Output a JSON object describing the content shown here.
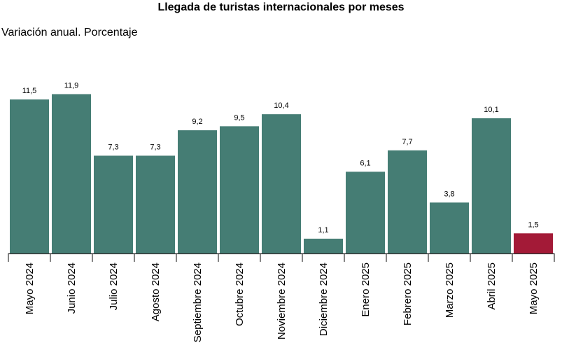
{
  "chart_data": {
    "type": "bar",
    "title": "Llegada de turistas internacionales por meses",
    "subtitle": "Variación anual. Porcentaje",
    "categories": [
      "Mayo 2024",
      "Junio 2024",
      "Julio 2024",
      "Agosto 2024",
      "Septiembre 2024",
      "Octubre 2024",
      "Noviembre 2024",
      "Diciembre 2024",
      "Enero 2025",
      "Febrero 2025",
      "Marzo 2025",
      "Abril 2025",
      "Mayo 2025"
    ],
    "values": [
      11.5,
      11.9,
      7.3,
      7.3,
      9.2,
      9.5,
      10.4,
      1.1,
      6.1,
      7.7,
      3.8,
      10.1,
      1.5
    ],
    "value_labels": [
      "11,5",
      "11,9",
      "7,3",
      "7,3",
      "9,2",
      "9,5",
      "10,4",
      "1,1",
      "6,1",
      "7,7",
      "3,8",
      "10,1",
      "1,5"
    ],
    "colors": {
      "default": "#457d74",
      "highlight": "#a31a37"
    },
    "highlight_index": 12,
    "ylim": [
      0,
      12.5
    ],
    "grid": false,
    "legend": "none"
  }
}
